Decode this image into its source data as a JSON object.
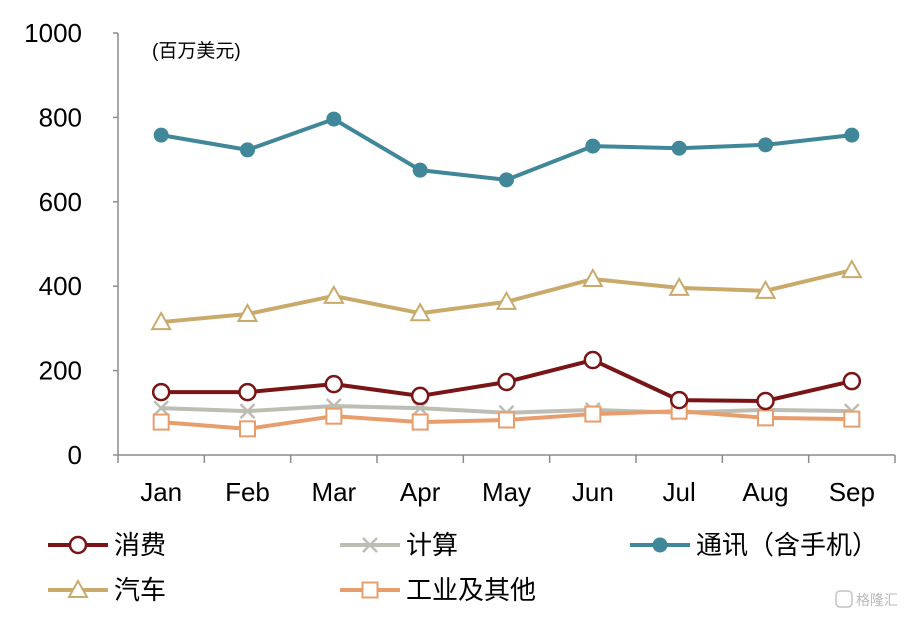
{
  "chart_data": {
    "type": "line",
    "unit_label": "(百万美元)",
    "categories": [
      "Jan",
      "Feb",
      "Mar",
      "Apr",
      "May",
      "Jun",
      "Jul",
      "Aug",
      "Sep"
    ],
    "ylim": [
      0,
      1000
    ],
    "yticks": [
      0,
      200,
      400,
      600,
      800,
      1000
    ],
    "grid": false,
    "legend": "bottom",
    "series": [
      {
        "name": "消费",
        "color": "#7A1517",
        "marker": "open-circle",
        "values": [
          149,
          149,
          168,
          140,
          173,
          225,
          130,
          128,
          175
        ]
      },
      {
        "name": "计算",
        "color": "#BDBDB3",
        "marker": "x",
        "values": [
          111,
          104,
          116,
          111,
          100,
          107,
          100,
          107,
          104
        ]
      },
      {
        "name": "通讯（含手机）",
        "color": "#3F8799",
        "marker": "filled-circle",
        "values": [
          758,
          723,
          796,
          675,
          652,
          732,
          727,
          735,
          758
        ]
      },
      {
        "name": "汽车",
        "color": "#C9AA6B",
        "marker": "open-triangle",
        "values": [
          315,
          334,
          377,
          336,
          363,
          417,
          396,
          389,
          438
        ]
      },
      {
        "name": "工业及其他",
        "color": "#E89D6D",
        "marker": "open-square",
        "values": [
          78,
          62,
          92,
          78,
          83,
          97,
          104,
          88,
          85
        ]
      }
    ]
  },
  "watermark": "格隆汇"
}
